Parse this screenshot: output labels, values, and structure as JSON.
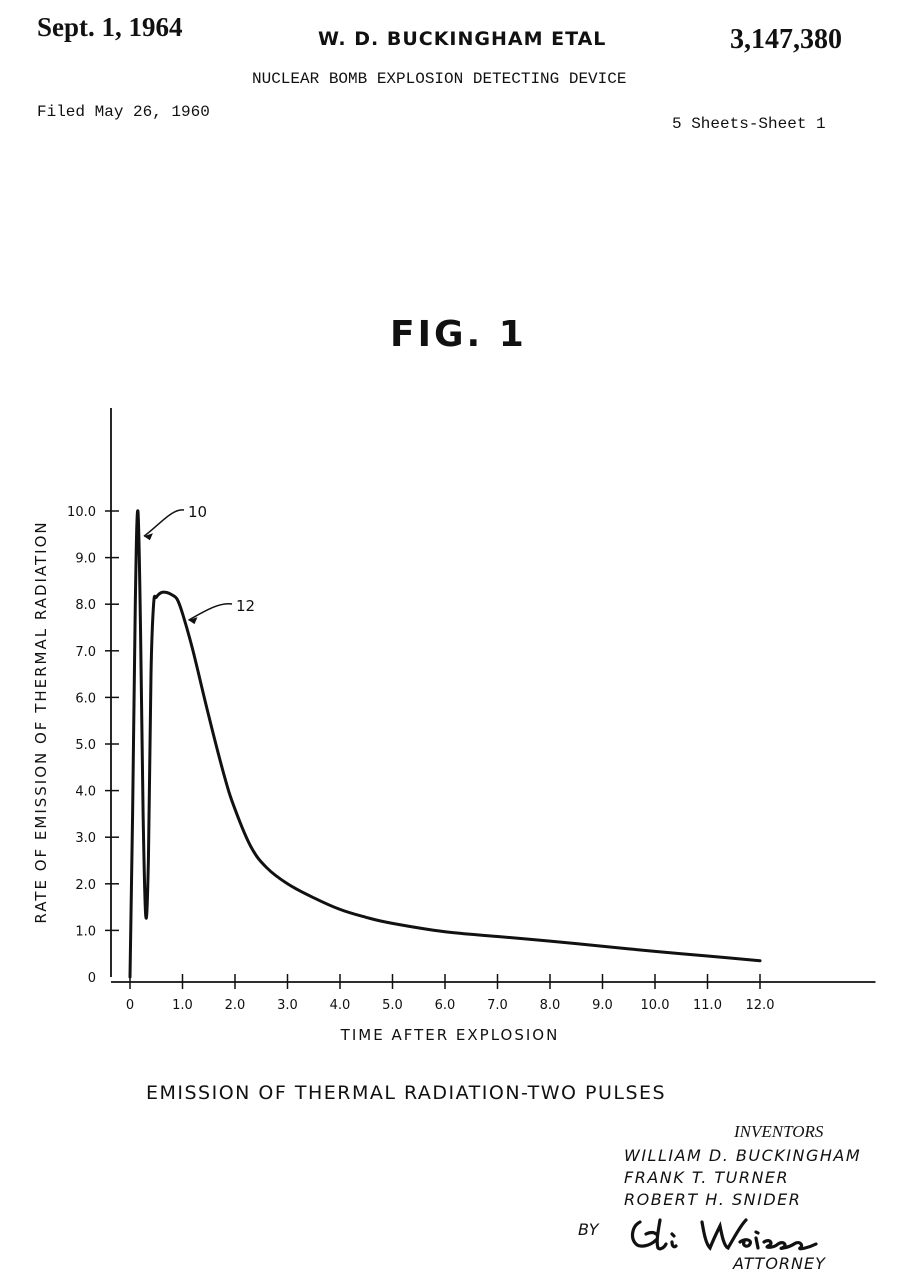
{
  "header": {
    "date": "Sept. 1, 1964",
    "inventor": "W. D. BUCKINGHAM ETAL",
    "patent_number": "3,147,380",
    "title": "NUCLEAR BOMB EXPLOSION DETECTING DEVICE",
    "filed": "Filed May 26, 1960",
    "sheets": "5 Sheets-Sheet 1"
  },
  "figure_label": "FIG. 1",
  "chart_data": {
    "type": "line",
    "title": "",
    "xlabel": "TIME AFTER EXPLOSION",
    "ylabel": "RATE OF EMISSION OF THERMAL RADIATION",
    "x_ticks": [
      "0",
      "1.0",
      "2.0",
      "3.0",
      "4.0",
      "5.0",
      "6.0",
      "7.0",
      "8.0",
      "9.0",
      "10.0",
      "11.0",
      "12.0"
    ],
    "y_ticks": [
      "0",
      "1.0",
      "2.0",
      "3.0",
      "4.0",
      "5.0",
      "6.0",
      "7.0",
      "8.0",
      "9.0",
      "10.0"
    ],
    "xlim": [
      0,
      14.2
    ],
    "ylim": [
      0,
      12
    ],
    "grid": false,
    "annotations": [
      {
        "text": "10",
        "points_to": {
          "x": 0.15,
          "y": 9.5
        }
      },
      {
        "text": "12",
        "points_to": {
          "x": 1.0,
          "y": 7.7
        }
      }
    ],
    "series": [
      {
        "x": [
          0.0,
          0.05,
          0.1,
          0.15,
          0.2,
          0.25,
          0.3,
          0.35,
          0.4,
          0.45,
          0.5,
          0.6,
          0.7,
          0.8,
          0.9,
          1.0,
          1.2,
          1.5,
          1.8,
          2.0,
          2.3,
          2.6,
          3.0,
          3.5,
          4.0,
          4.5,
          5.0,
          6.0,
          7.0,
          8.0,
          9.0,
          10.0,
          11.0,
          12.0
        ],
        "y": [
          0.0,
          3.5,
          8.0,
          10.0,
          7.5,
          3.5,
          1.3,
          2.5,
          6.5,
          8.0,
          8.15,
          8.25,
          8.25,
          8.2,
          8.1,
          7.8,
          7.0,
          5.6,
          4.3,
          3.6,
          2.8,
          2.35,
          2.0,
          1.7,
          1.45,
          1.28,
          1.15,
          0.97,
          0.87,
          0.77,
          0.66,
          0.55,
          0.45,
          0.35
        ]
      }
    ]
  },
  "caption": "EMISSION OF THERMAL RADIATION-TWO PULSES",
  "inventors": {
    "label": "INVENTORS",
    "names": [
      "WILLIAM D. BUCKINGHAM",
      "FRANK T. TURNER",
      "ROBERT H. SNIDER"
    ],
    "by": "BY",
    "signature": "Eli Weiss",
    "role": "ATTORNEY"
  }
}
